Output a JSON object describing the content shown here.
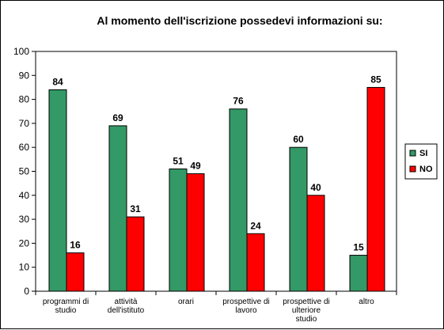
{
  "chart_data": {
    "type": "bar",
    "title": "Al momento dell'iscrizione possedevi informazioni su:",
    "categories": [
      [
        "programmi di",
        "studio"
      ],
      [
        "attività",
        "dell'istituto"
      ],
      [
        "orari"
      ],
      [
        "prospettive di",
        "lavoro"
      ],
      [
        "prospettive di",
        "ulteriore",
        "studio"
      ],
      [
        "altro"
      ]
    ],
    "series": [
      {
        "name": "SI",
        "color": "#339966",
        "values": [
          84,
          69,
          51,
          76,
          60,
          15
        ]
      },
      {
        "name": "NO",
        "color": "#ff0000",
        "values": [
          16,
          31,
          49,
          24,
          40,
          85
        ]
      }
    ],
    "ylim": [
      0,
      100
    ],
    "yticks": [
      0,
      10,
      20,
      30,
      40,
      50,
      60,
      70,
      80,
      90,
      100
    ],
    "grid": false,
    "legend": "right"
  }
}
